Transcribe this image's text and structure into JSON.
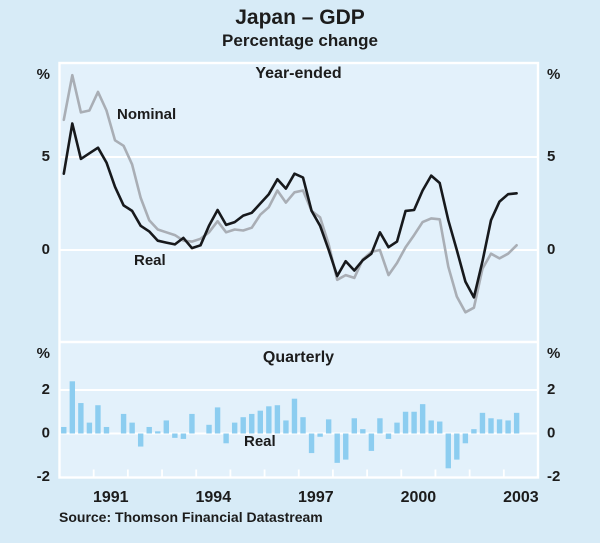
{
  "header": {
    "title": "Japan – GDP",
    "subtitle": "Percentage change"
  },
  "source_note": "Source: Thomson Financial Datastream",
  "colors": {
    "background": "#d7ebf7",
    "panel_background": "#e3f1fb",
    "grid": "#ffffff",
    "bar": "#8ccdf0",
    "nominal_line": "#a9aeb5",
    "real_line": "#17191c",
    "text": "#1c1c1c"
  },
  "chart_data": [
    {
      "type": "line",
      "title": "Year-ended",
      "unit": "%",
      "x_start": 1990.125,
      "x_step": 0.25,
      "xlim": [
        1990,
        2004
      ],
      "ylim": [
        -4.95,
        10.05
      ],
      "grid": "horizontal white gridlines on light blue panel",
      "legend_position": "inline annotations",
      "ytick_labels": [
        {
          "value": 5,
          "text": "5"
        },
        {
          "value": 0,
          "text": "0"
        }
      ],
      "annotations": {
        "nominal": "Nominal",
        "real": "Real"
      },
      "series": [
        {
          "name": "Nominal",
          "values": [
            7.0,
            9.4,
            7.4,
            7.5,
            8.5,
            7.5,
            5.9,
            5.6,
            4.6,
            2.8,
            1.6,
            1.1,
            0.95,
            0.8,
            0.5,
            0.45,
            0.6,
            0.95,
            1.55,
            0.95,
            1.1,
            1.05,
            1.2,
            1.9,
            2.3,
            3.2,
            2.55,
            3.1,
            3.2,
            2.1,
            1.75,
            0.3,
            -1.6,
            -1.35,
            -1.5,
            -0.5,
            -0.1,
            0.0,
            -1.35,
            -0.7,
            0.15,
            0.8,
            1.5,
            1.7,
            1.65,
            -0.9,
            -2.5,
            -3.35,
            -3.1,
            -1.0,
            -0.2,
            -0.45,
            -0.2,
            0.25
          ]
        },
        {
          "name": "Real",
          "values": [
            4.1,
            6.8,
            4.9,
            5.2,
            5.5,
            4.7,
            3.4,
            2.4,
            2.1,
            1.3,
            1.0,
            0.5,
            0.4,
            0.3,
            0.65,
            0.1,
            0.25,
            1.3,
            2.15,
            1.35,
            1.5,
            1.85,
            2.0,
            2.5,
            3.0,
            3.8,
            3.3,
            4.1,
            3.9,
            2.1,
            1.3,
            0.0,
            -1.4,
            -0.6,
            -1.1,
            -0.55,
            -0.2,
            0.95,
            0.15,
            0.45,
            2.1,
            2.15,
            3.2,
            4.0,
            3.6,
            1.6,
            0.0,
            -1.7,
            -2.55,
            -0.6,
            1.6,
            2.6,
            3.0,
            3.05
          ]
        }
      ]
    },
    {
      "type": "bar",
      "title": "Quarterly",
      "unit": "%",
      "x_start": 1990.125,
      "x_step": 0.25,
      "xlim": [
        1990,
        2004
      ],
      "ylim": [
        -2.1,
        4.2
      ],
      "grid": "horizontal white gridlines on light blue panel",
      "ytick_labels": [
        {
          "value": 2,
          "text": "2"
        },
        {
          "value": 0,
          "text": "0"
        },
        {
          "value": -2,
          "text": "-2"
        }
      ],
      "annotations": {
        "real": "Real"
      },
      "x_axis_ticks": [
        1991,
        1992,
        1993,
        1994,
        1995,
        1996,
        1997,
        1998,
        1999,
        2000,
        2001,
        2002,
        2003
      ],
      "x_axis_labels": [
        {
          "year": 1991,
          "text": "1991"
        },
        {
          "year": 1994,
          "text": "1994"
        },
        {
          "year": 1997,
          "text": "1997"
        },
        {
          "year": 2000,
          "text": "2000"
        },
        {
          "year": 2003,
          "text": "2003"
        }
      ],
      "series_name": "Real",
      "values": [
        0.3,
        2.4,
        1.4,
        0.5,
        1.3,
        0.3,
        0.0,
        0.9,
        0.5,
        -0.6,
        0.3,
        0.1,
        0.6,
        -0.2,
        -0.25,
        0.9,
        0.0,
        0.4,
        1.2,
        -0.45,
        0.5,
        0.75,
        0.9,
        1.05,
        1.25,
        1.3,
        0.6,
        1.6,
        0.75,
        -0.9,
        -0.15,
        0.65,
        -1.35,
        -1.2,
        0.7,
        0.2,
        -0.8,
        0.7,
        -0.25,
        0.5,
        1.0,
        1.0,
        1.35,
        0.6,
        0.55,
        -1.6,
        -1.2,
        -0.45,
        0.2,
        0.95,
        0.7,
        0.65,
        0.6,
        0.95
      ]
    }
  ]
}
